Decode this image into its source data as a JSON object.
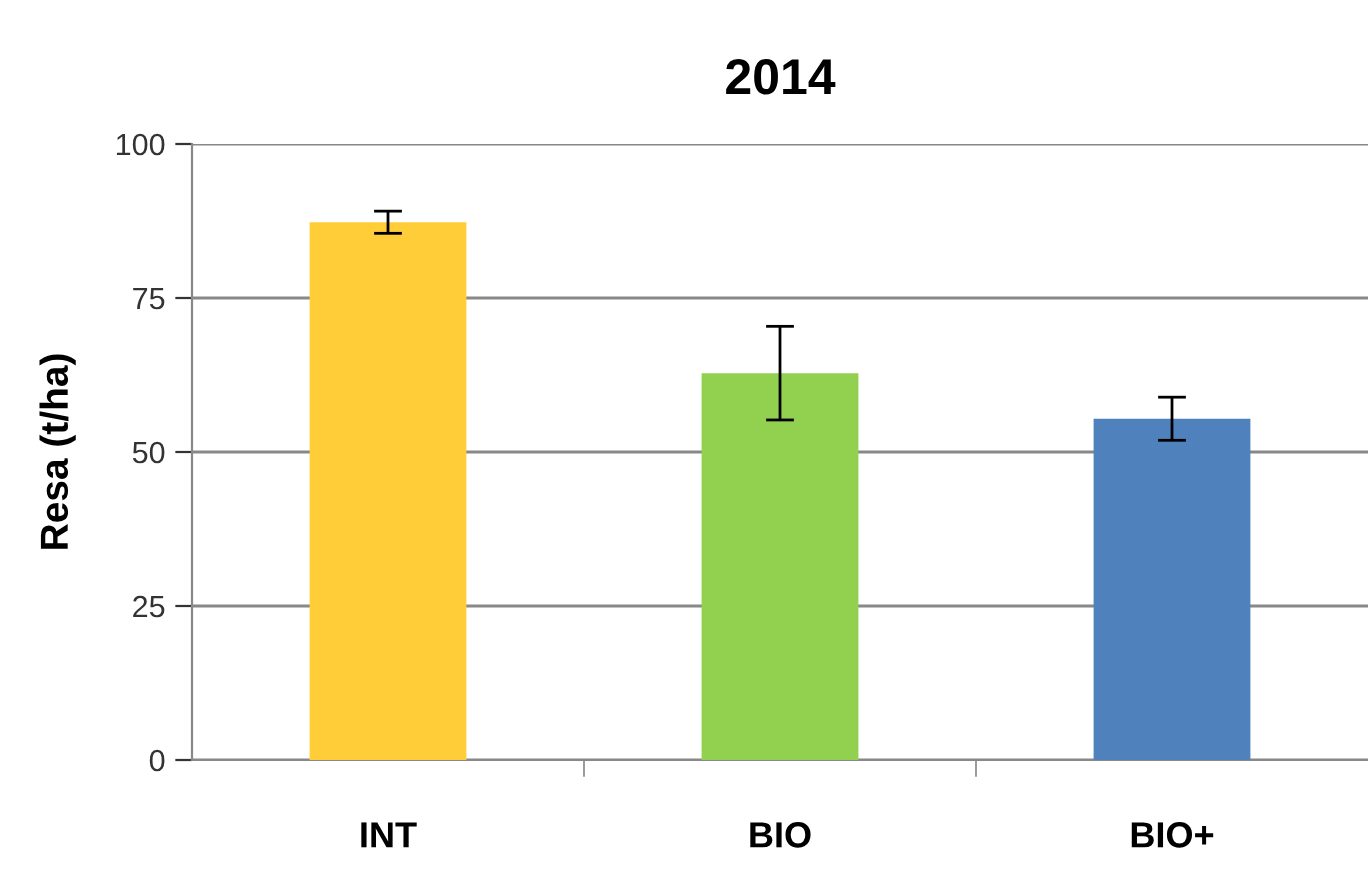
{
  "chart_data": {
    "type": "bar",
    "title": "2014",
    "ylabel": "Resa (t/ha)",
    "categories": [
      "INT",
      "BIO",
      "BIO+"
    ],
    "values": [
      87.3,
      62.8,
      55.4
    ],
    "errors": [
      1.8,
      7.6,
      3.5
    ],
    "colors": [
      "#ffcd38",
      "#92d050",
      "#4f81bd"
    ],
    "ylim": [
      0,
      100
    ],
    "yticks": [
      0,
      25,
      50,
      75,
      100
    ],
    "grid": "y",
    "legend": false
  }
}
